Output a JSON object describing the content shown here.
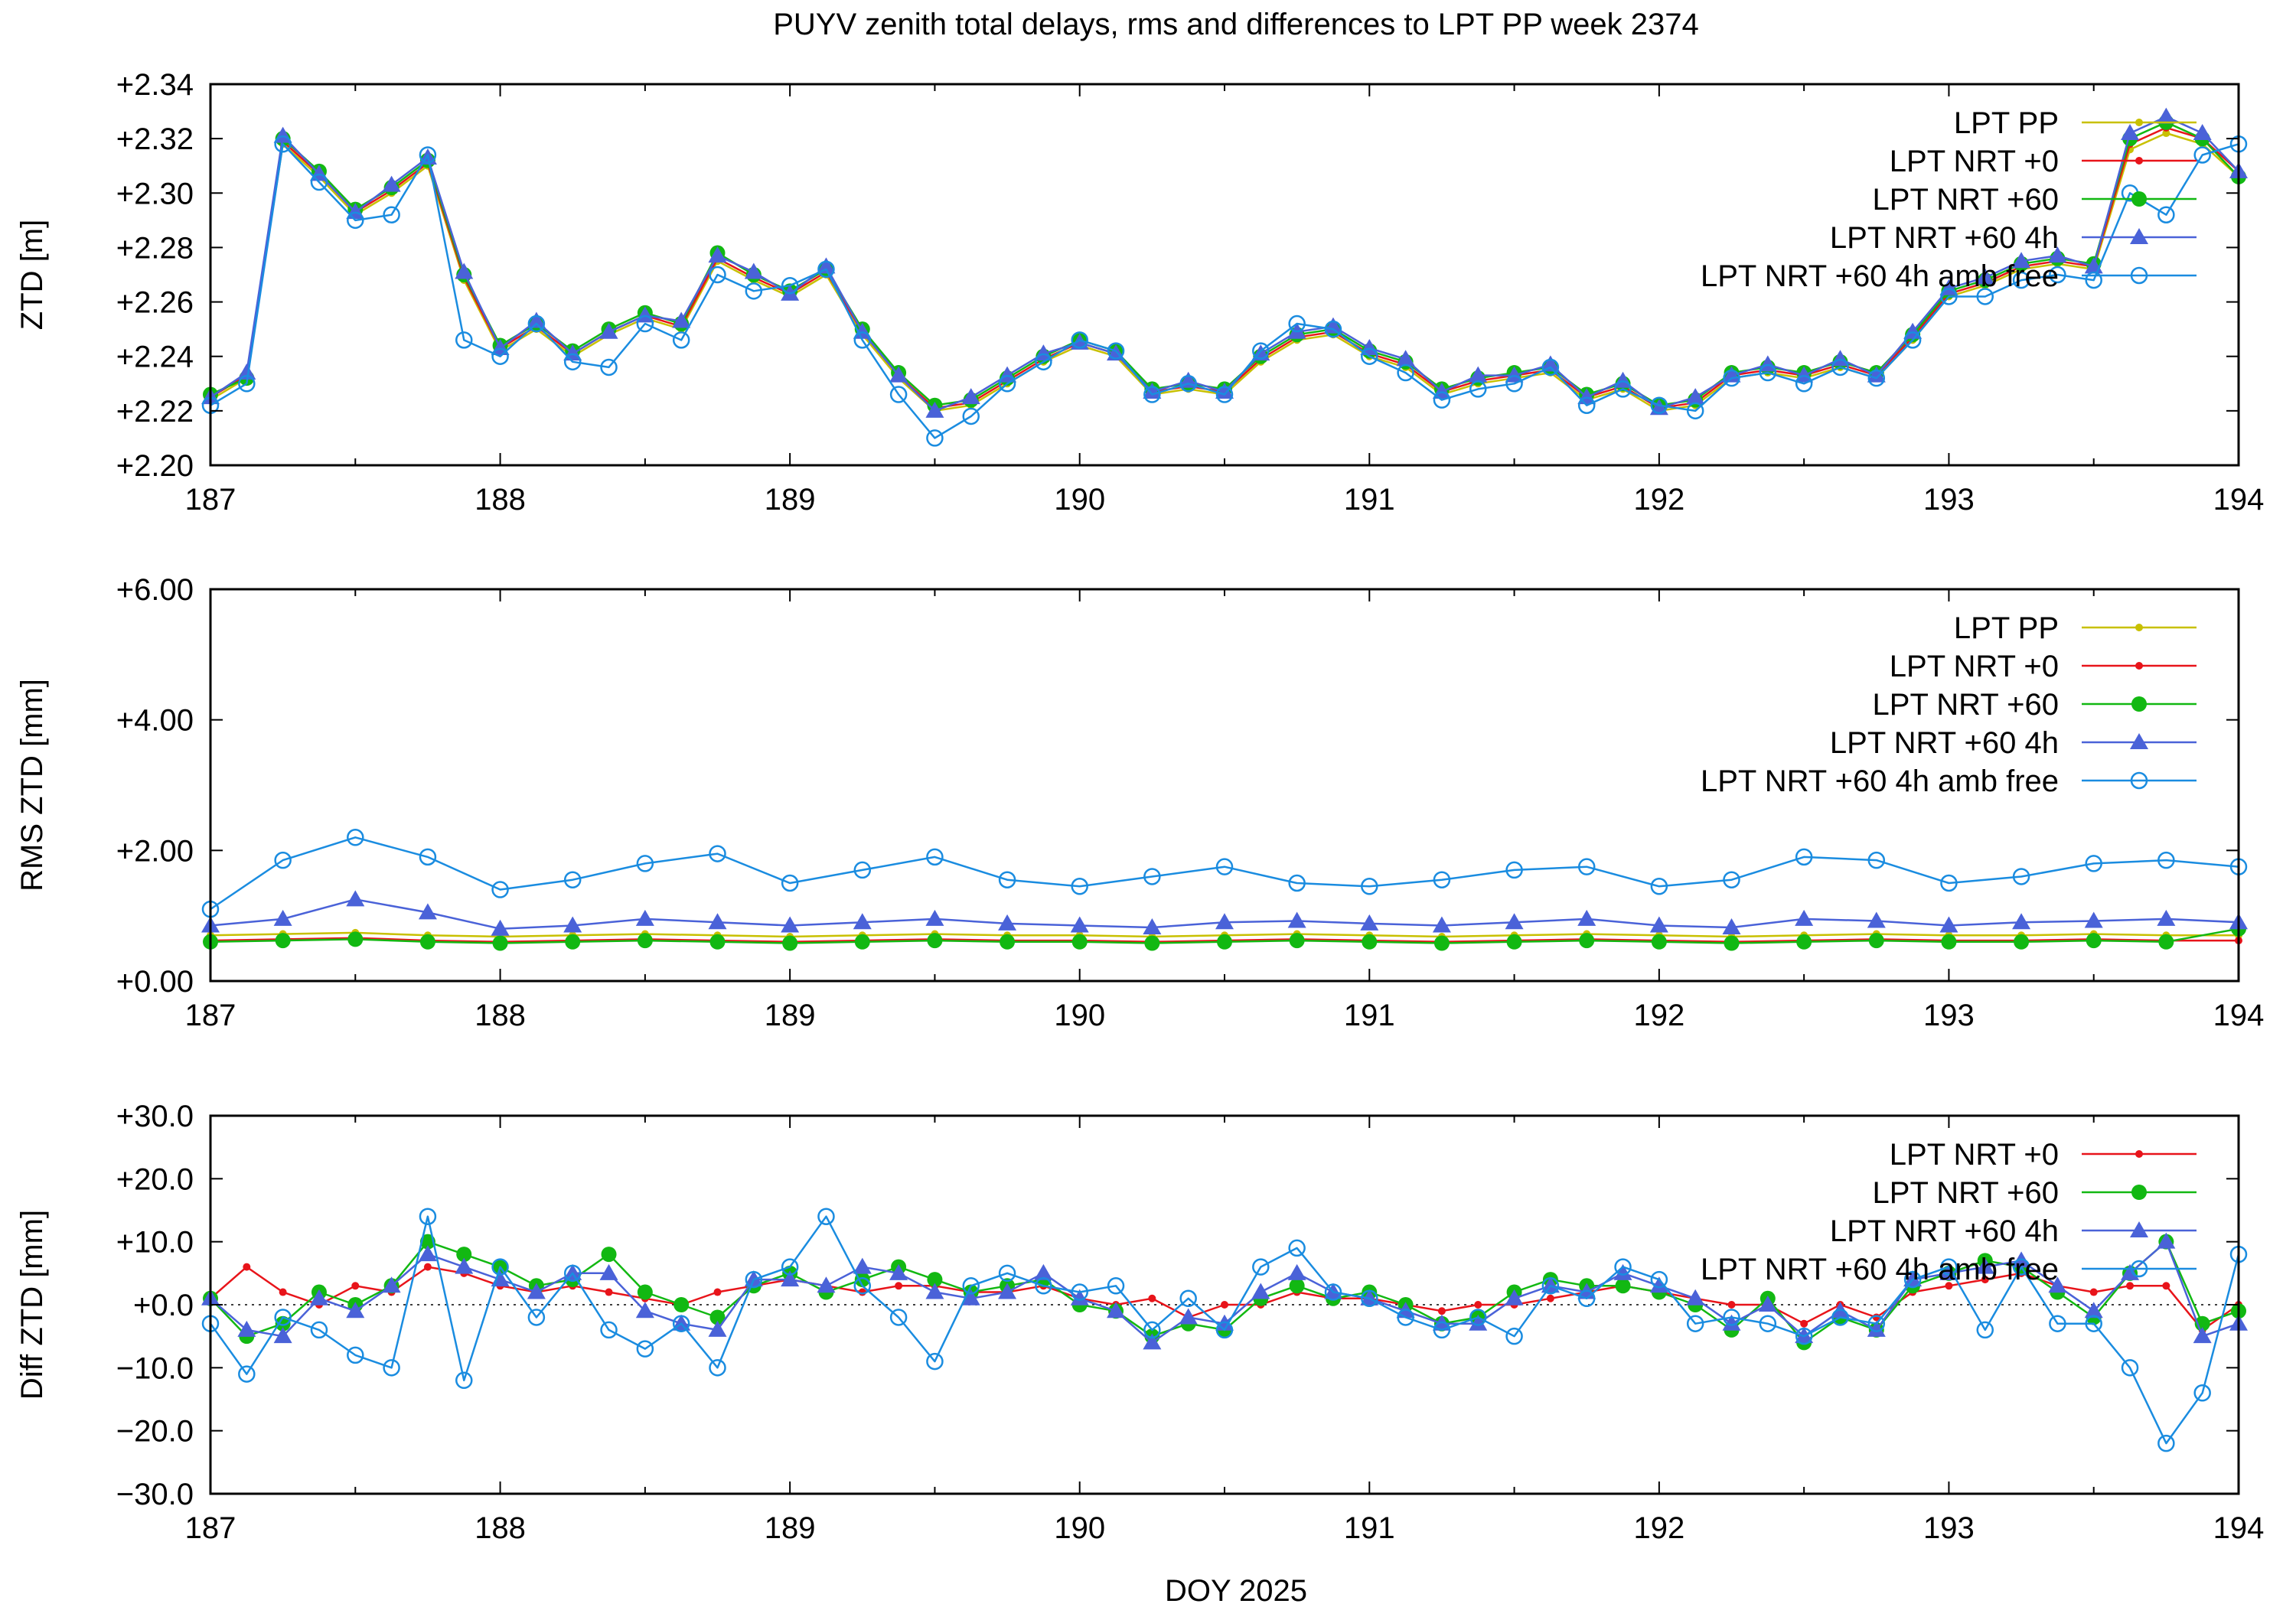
{
  "figure": {
    "title": "PUYV zenith total delays, rms and differences to LPT PP week 2374",
    "xlabel": "DOY 2025"
  },
  "colors": {
    "pp": "#c8c000",
    "nrt0": "#e8141a",
    "nrt60": "#12b812",
    "nrt60_4h": "#4a62d8",
    "amb": "#1a8ce0",
    "frame": "#000000"
  },
  "chart_data": [
    {
      "type": "line",
      "ylabel": "ZTD [m]",
      "xlim": [
        187,
        194
      ],
      "ylim": [
        2.2,
        2.34
      ],
      "x_ticks": [
        187,
        188,
        189,
        190,
        191,
        192,
        193,
        194
      ],
      "x_tick_labels": [
        "187",
        "188",
        "189",
        "190",
        "191",
        "192",
        "193",
        "194"
      ],
      "y_ticks": [
        2.2,
        2.22,
        2.24,
        2.26,
        2.28,
        2.3,
        2.32,
        2.34
      ],
      "y_tick_labels": [
        "+2.20",
        "+2.22",
        "+2.24",
        "+2.26",
        "+2.28",
        "+2.30",
        "+2.32",
        "+2.34"
      ],
      "grid": false,
      "legend": "top-right",
      "legend_entries": [
        "LPT PP",
        "LPT NRT +0",
        "LPT NRT +60",
        "LPT NRT +60 4h",
        "LPT NRT +60 4h amb free"
      ],
      "x": [
        187.0,
        187.125,
        187.25,
        187.375,
        187.5,
        187.625,
        187.75,
        187.875,
        188.0,
        188.125,
        188.25,
        188.375,
        188.5,
        188.625,
        188.75,
        188.875,
        189.0,
        189.125,
        189.25,
        189.375,
        189.5,
        189.625,
        189.75,
        189.875,
        190.0,
        190.125,
        190.25,
        190.375,
        190.5,
        190.625,
        190.75,
        190.875,
        191.0,
        191.125,
        191.25,
        191.375,
        191.5,
        191.625,
        191.75,
        191.875,
        192.0,
        192.125,
        192.25,
        192.375,
        192.5,
        192.625,
        192.75,
        192.875,
        193.0,
        193.125,
        193.25,
        193.375,
        193.5,
        193.625,
        193.75,
        193.875,
        194.0
      ],
      "series": [
        {
          "name": "LPT PP",
          "values": [
            2.224,
            2.232,
            2.318,
            2.306,
            2.292,
            2.3,
            2.31,
            2.268,
            2.242,
            2.25,
            2.24,
            2.248,
            2.254,
            2.25,
            2.275,
            2.268,
            2.262,
            2.27,
            2.248,
            2.232,
            2.22,
            2.222,
            2.23,
            2.238,
            2.244,
            2.24,
            2.226,
            2.228,
            2.226,
            2.238,
            2.246,
            2.248,
            2.24,
            2.236,
            2.226,
            2.23,
            2.232,
            2.234,
            2.224,
            2.228,
            2.22,
            2.222,
            2.232,
            2.234,
            2.232,
            2.236,
            2.232,
            2.246,
            2.262,
            2.266,
            2.272,
            2.274,
            2.272,
            2.316,
            2.322,
            2.318,
            2.306
          ]
        },
        {
          "name": "LPT NRT +0",
          "values": [
            2.225,
            2.233,
            2.319,
            2.307,
            2.293,
            2.301,
            2.311,
            2.269,
            2.243,
            2.251,
            2.241,
            2.249,
            2.255,
            2.251,
            2.276,
            2.269,
            2.263,
            2.271,
            2.249,
            2.233,
            2.221,
            2.223,
            2.231,
            2.239,
            2.245,
            2.241,
            2.227,
            2.229,
            2.227,
            2.239,
            2.247,
            2.249,
            2.241,
            2.237,
            2.227,
            2.231,
            2.233,
            2.235,
            2.225,
            2.229,
            2.221,
            2.223,
            2.233,
            2.235,
            2.233,
            2.237,
            2.233,
            2.247,
            2.263,
            2.267,
            2.273,
            2.275,
            2.273,
            2.318,
            2.324,
            2.32,
            2.308
          ]
        },
        {
          "name": "LPT NRT +60",
          "values": [
            2.226,
            2.232,
            2.32,
            2.308,
            2.294,
            2.302,
            2.312,
            2.27,
            2.244,
            2.252,
            2.242,
            2.25,
            2.256,
            2.252,
            2.278,
            2.27,
            2.264,
            2.272,
            2.25,
            2.234,
            2.222,
            2.224,
            2.232,
            2.24,
            2.246,
            2.242,
            2.228,
            2.23,
            2.228,
            2.24,
            2.248,
            2.25,
            2.242,
            2.238,
            2.228,
            2.232,
            2.234,
            2.236,
            2.226,
            2.23,
            2.222,
            2.224,
            2.234,
            2.236,
            2.234,
            2.238,
            2.234,
            2.248,
            2.264,
            2.268,
            2.274,
            2.276,
            2.274,
            2.32,
            2.326,
            2.32,
            2.306
          ]
        },
        {
          "name": "LPT NRT +60 4h",
          "values": [
            2.225,
            2.234,
            2.321,
            2.307,
            2.293,
            2.303,
            2.313,
            2.271,
            2.243,
            2.253,
            2.241,
            2.249,
            2.255,
            2.253,
            2.277,
            2.271,
            2.263,
            2.273,
            2.249,
            2.233,
            2.22,
            2.225,
            2.233,
            2.241,
            2.245,
            2.241,
            2.227,
            2.231,
            2.227,
            2.241,
            2.249,
            2.251,
            2.243,
            2.239,
            2.227,
            2.233,
            2.233,
            2.237,
            2.225,
            2.231,
            2.221,
            2.225,
            2.233,
            2.237,
            2.233,
            2.239,
            2.233,
            2.249,
            2.265,
            2.269,
            2.275,
            2.277,
            2.273,
            2.322,
            2.328,
            2.322,
            2.308
          ]
        },
        {
          "name": "LPT NRT +60 4h amb free",
          "values": [
            2.222,
            2.23,
            2.318,
            2.304,
            2.29,
            2.292,
            2.314,
            2.246,
            2.24,
            2.252,
            2.238,
            2.236,
            2.252,
            2.246,
            2.27,
            2.264,
            2.266,
            2.272,
            2.246,
            2.226,
            2.21,
            2.218,
            2.23,
            2.238,
            2.246,
            2.242,
            2.226,
            2.23,
            2.226,
            2.242,
            2.252,
            2.25,
            2.24,
            2.234,
            2.224,
            2.228,
            2.23,
            2.236,
            2.222,
            2.228,
            2.222,
            2.22,
            2.232,
            2.234,
            2.23,
            2.236,
            2.232,
            2.246,
            2.262,
            2.262,
            2.268,
            2.27,
            2.268,
            2.3,
            2.292,
            2.314,
            2.318
          ]
        }
      ]
    },
    {
      "type": "line",
      "ylabel": "RMS ZTD [mm]",
      "xlim": [
        187,
        194
      ],
      "ylim": [
        0.0,
        6.0
      ],
      "x_ticks": [
        187,
        188,
        189,
        190,
        191,
        192,
        193,
        194
      ],
      "x_tick_labels": [
        "187",
        "188",
        "189",
        "190",
        "191",
        "192",
        "193",
        "194"
      ],
      "y_ticks": [
        0.0,
        2.0,
        4.0,
        6.0
      ],
      "y_tick_labels": [
        "+0.00",
        "+2.00",
        "+4.00",
        "+6.00"
      ],
      "grid": false,
      "legend": "top-right",
      "legend_entries": [
        "LPT PP",
        "LPT NRT +0",
        "LPT NRT +60",
        "LPT NRT +60 4h",
        "LPT NRT +60 4h amb free"
      ],
      "x": [
        187.0,
        187.25,
        187.5,
        187.75,
        188.0,
        188.25,
        188.5,
        188.75,
        189.0,
        189.25,
        189.5,
        189.75,
        190.0,
        190.25,
        190.5,
        190.75,
        191.0,
        191.25,
        191.5,
        191.75,
        192.0,
        192.25,
        192.5,
        192.75,
        193.0,
        193.25,
        193.5,
        193.75,
        194.0
      ],
      "series": [
        {
          "name": "LPT PP",
          "values": [
            0.7,
            0.72,
            0.74,
            0.7,
            0.68,
            0.7,
            0.72,
            0.7,
            0.68,
            0.7,
            0.72,
            0.7,
            0.7,
            0.68,
            0.7,
            0.72,
            0.7,
            0.68,
            0.7,
            0.72,
            0.7,
            0.68,
            0.7,
            0.72,
            0.7,
            0.7,
            0.72,
            0.7,
            0.7
          ]
        },
        {
          "name": "LPT NRT +0",
          "values": [
            0.62,
            0.64,
            0.66,
            0.62,
            0.6,
            0.62,
            0.64,
            0.62,
            0.6,
            0.62,
            0.64,
            0.62,
            0.62,
            0.6,
            0.62,
            0.64,
            0.62,
            0.6,
            0.62,
            0.64,
            0.62,
            0.6,
            0.62,
            0.64,
            0.62,
            0.62,
            0.64,
            0.62,
            0.62
          ]
        },
        {
          "name": "LPT NRT +60",
          "values": [
            0.6,
            0.62,
            0.64,
            0.6,
            0.58,
            0.6,
            0.62,
            0.6,
            0.58,
            0.6,
            0.62,
            0.6,
            0.6,
            0.58,
            0.6,
            0.62,
            0.6,
            0.58,
            0.6,
            0.62,
            0.6,
            0.58,
            0.6,
            0.62,
            0.6,
            0.6,
            0.62,
            0.6,
            0.8
          ]
        },
        {
          "name": "LPT NRT +60 4h",
          "values": [
            0.85,
            0.95,
            1.25,
            1.05,
            0.8,
            0.85,
            0.95,
            0.9,
            0.85,
            0.9,
            0.95,
            0.88,
            0.85,
            0.82,
            0.9,
            0.92,
            0.88,
            0.85,
            0.9,
            0.95,
            0.85,
            0.82,
            0.95,
            0.92,
            0.85,
            0.9,
            0.92,
            0.95,
            0.9
          ]
        },
        {
          "name": "LPT NRT +60 4h amb free",
          "values": [
            1.1,
            1.85,
            2.2,
            1.9,
            1.4,
            1.55,
            1.8,
            1.95,
            1.5,
            1.7,
            1.9,
            1.55,
            1.45,
            1.6,
            1.75,
            1.5,
            1.45,
            1.55,
            1.7,
            1.75,
            1.45,
            1.55,
            1.9,
            1.85,
            1.5,
            1.6,
            1.8,
            1.85,
            1.75
          ]
        }
      ]
    },
    {
      "type": "line",
      "ylabel": "Diff ZTD [mm]",
      "xlim": [
        187,
        194
      ],
      "ylim": [
        -30.0,
        30.0
      ],
      "x_ticks": [
        187,
        188,
        189,
        190,
        191,
        192,
        193,
        194
      ],
      "x_tick_labels": [
        "187",
        "188",
        "189",
        "190",
        "191",
        "192",
        "193",
        "194"
      ],
      "y_ticks": [
        -30.0,
        -20.0,
        -10.0,
        0.0,
        10.0,
        20.0,
        30.0
      ],
      "y_tick_labels": [
        "−30.0",
        "−20.0",
        "−10.0",
        "+0.0",
        "+10.0",
        "+20.0",
        "+30.0"
      ],
      "zero_line": true,
      "grid": false,
      "legend": "top-right",
      "legend_entries": [
        "LPT NRT +0",
        "LPT NRT +60",
        "LPT NRT +60 4h",
        "LPT NRT +60 4h amb free"
      ],
      "x": [
        187.0,
        187.125,
        187.25,
        187.375,
        187.5,
        187.625,
        187.75,
        187.875,
        188.0,
        188.125,
        188.25,
        188.375,
        188.5,
        188.625,
        188.75,
        188.875,
        189.0,
        189.125,
        189.25,
        189.375,
        189.5,
        189.625,
        189.75,
        189.875,
        190.0,
        190.125,
        190.25,
        190.375,
        190.5,
        190.625,
        190.75,
        190.875,
        191.0,
        191.125,
        191.25,
        191.375,
        191.5,
        191.625,
        191.75,
        191.875,
        192.0,
        192.125,
        192.25,
        192.375,
        192.5,
        192.625,
        192.75,
        192.875,
        193.0,
        193.125,
        193.25,
        193.375,
        193.5,
        193.625,
        193.75,
        193.875,
        194.0
      ],
      "series": [
        {
          "name": "LPT NRT +0",
          "values": [
            1.0,
            6.0,
            2.0,
            0.0,
            3.0,
            2.0,
            6.0,
            5.0,
            3.0,
            2.0,
            3.0,
            2.0,
            1.0,
            0.0,
            2.0,
            3.0,
            4.0,
            3.0,
            2.0,
            3.0,
            3.0,
            2.0,
            2.0,
            3.0,
            1.0,
            0.0,
            1.0,
            -2.0,
            0.0,
            0.0,
            2.0,
            1.0,
            1.0,
            0.0,
            -1.0,
            0.0,
            0.0,
            1.0,
            2.0,
            3.0,
            2.0,
            1.0,
            0.0,
            0.0,
            -3.0,
            0.0,
            -2.0,
            2.0,
            3.0,
            4.0,
            5.0,
            3.0,
            2.0,
            3.0,
            3.0,
            -4.0,
            0.0
          ]
        },
        {
          "name": "LPT NRT +60",
          "values": [
            1.0,
            -5.0,
            -3.0,
            2.0,
            0.0,
            3.0,
            10.0,
            8.0,
            6.0,
            3.0,
            4.0,
            8.0,
            2.0,
            0.0,
            -2.0,
            3.0,
            5.0,
            2.0,
            4.0,
            6.0,
            4.0,
            2.0,
            3.0,
            4.0,
            0.0,
            -1.0,
            -5.0,
            -3.0,
            -4.0,
            1.0,
            3.0,
            1.0,
            2.0,
            0.0,
            -3.0,
            -2.0,
            2.0,
            4.0,
            3.0,
            3.0,
            2.0,
            0.0,
            -4.0,
            1.0,
            -6.0,
            -2.0,
            -4.0,
            3.0,
            5.0,
            7.0,
            6.0,
            2.0,
            -2.0,
            5.0,
            10.0,
            -3.0,
            -1.0
          ]
        },
        {
          "name": "LPT NRT +60 4h",
          "values": [
            1.0,
            -4.0,
            -5.0,
            1.0,
            -1.0,
            3.0,
            8.0,
            6.0,
            4.0,
            2.0,
            5.0,
            5.0,
            -1.0,
            -3.0,
            -4.0,
            4.0,
            4.0,
            3.0,
            6.0,
            5.0,
            2.0,
            1.0,
            2.0,
            5.0,
            1.0,
            -1.0,
            -6.0,
            -2.0,
            -3.0,
            2.0,
            5.0,
            2.0,
            1.0,
            -1.0,
            -3.0,
            -3.0,
            1.0,
            3.0,
            2.0,
            5.0,
            3.0,
            1.0,
            -3.0,
            0.0,
            -5.0,
            -1.0,
            -4.0,
            4.0,
            5.0,
            6.0,
            7.0,
            3.0,
            -1.0,
            5.0,
            10.0,
            -5.0,
            -3.0
          ]
        },
        {
          "name": "LPT NRT +60 4h amb free",
          "values": [
            -3.0,
            -11.0,
            -2.0,
            -4.0,
            -8.0,
            -10.0,
            14.0,
            -12.0,
            6.0,
            -2.0,
            5.0,
            -4.0,
            -7.0,
            -3.0,
            -10.0,
            4.0,
            6.0,
            14.0,
            3.0,
            -2.0,
            -9.0,
            3.0,
            5.0,
            3.0,
            2.0,
            3.0,
            -4.0,
            1.0,
            -4.0,
            6.0,
            9.0,
            2.0,
            1.0,
            -2.0,
            -4.0,
            -2.0,
            -5.0,
            3.0,
            1.0,
            6.0,
            4.0,
            -3.0,
            -2.0,
            -3.0,
            -5.0,
            -2.0,
            -3.0,
            4.0,
            6.0,
            -4.0,
            6.0,
            -3.0,
            -3.0,
            -10.0,
            -22.0,
            -14.0,
            8.0
          ]
        }
      ]
    }
  ]
}
